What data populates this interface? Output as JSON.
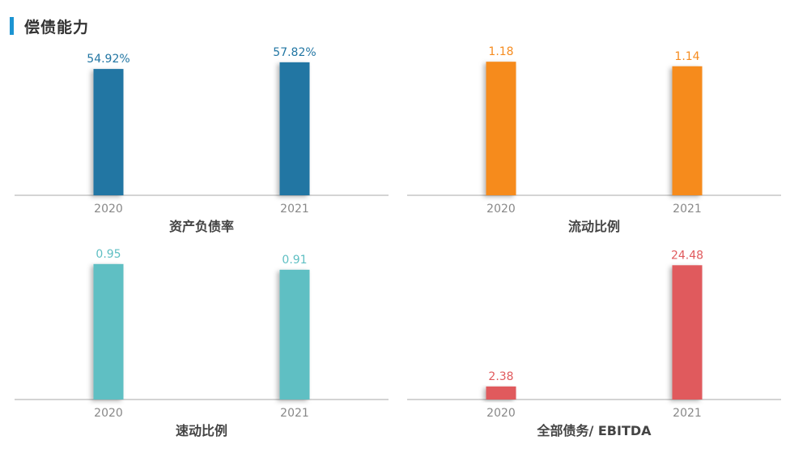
{
  "header": {
    "title": "偿债能力",
    "accent": "#1c94d2"
  },
  "chart_data": [
    {
      "type": "bar",
      "title": "资产负债率",
      "categories": [
        "2020",
        "2021"
      ],
      "values": [
        54.92,
        57.82
      ],
      "labels": [
        "54.92%",
        "57.82%"
      ],
      "color": "#2276a3",
      "ylim": [
        0,
        62
      ]
    },
    {
      "type": "bar",
      "title": "流动比例",
      "categories": [
        "2020",
        "2021"
      ],
      "values": [
        1.18,
        1.14
      ],
      "labels": [
        "1.18",
        "1.14"
      ],
      "color": "#f68b1e",
      "ylim": [
        0,
        1.26
      ]
    },
    {
      "type": "bar",
      "title": "速动比例",
      "categories": [
        "2020",
        "2021"
      ],
      "values": [
        0.95,
        0.91
      ],
      "labels": [
        "0.95",
        "0.91"
      ],
      "color": "#5fbfc3",
      "ylim": [
        0,
        1.0
      ]
    },
    {
      "type": "bar",
      "title": "全部债务/ EBITDA",
      "categories": [
        "2020",
        "2021"
      ],
      "values": [
        2.38,
        24.48
      ],
      "labels": [
        "2.38",
        "24.48"
      ],
      "color": "#e05a5d",
      "ylim": [
        0,
        26
      ]
    }
  ]
}
